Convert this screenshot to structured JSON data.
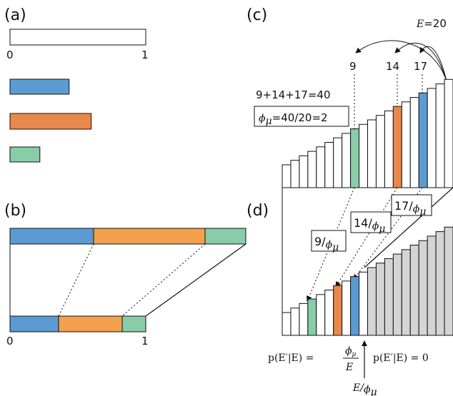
{
  "colors": {
    "blue": "#5b9bd1",
    "orange": "#e8884a",
    "orange_light": "#f4a04e",
    "green": "#88cca8",
    "gray": "#d4d4d4"
  },
  "panel_a": {
    "label": "(a)",
    "axis_start": "0",
    "axis_end": "1",
    "segments": [
      {
        "name": "blue",
        "fraction": 0.435
      },
      {
        "name": "orange",
        "fraction": 0.598
      },
      {
        "name": "green",
        "fraction": 0.22
      }
    ]
  },
  "panel_b": {
    "label": "(b)",
    "axis_start": "0",
    "axis_end": "1"
  },
  "panel_c": {
    "label": "(c)",
    "energy_label_var": "E",
    "energy_label_rest": "=20",
    "highlight_indices": [
      "9",
      "14",
      "17"
    ],
    "sum_text": "9+14+17=40",
    "phi_text": "=40/20=2",
    "bar_count": 20
  },
  "panel_d": {
    "label": "(d)",
    "box_17": "17/",
    "box_14": "14/",
    "box_9": "9/",
    "bar_count": 20,
    "cutoff_index": 10,
    "formula_left": "p(E′|E) =",
    "formula_right": "p(E′|E) = 0",
    "cutoff_label": "E/"
  }
}
